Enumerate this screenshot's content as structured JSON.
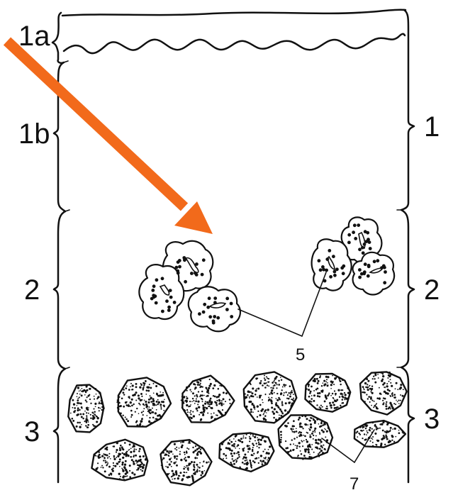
{
  "labels": {
    "left_1a": "1a",
    "left_1b": "1b",
    "left_2": "2",
    "left_3": "3",
    "right_1": "1",
    "right_2": "2",
    "right_3": "3",
    "callout_5": "5",
    "callout_7": "7"
  },
  "colors": {
    "arrow": "#f26a1b",
    "ink": "#111111",
    "paper": "#ffffff"
  }
}
